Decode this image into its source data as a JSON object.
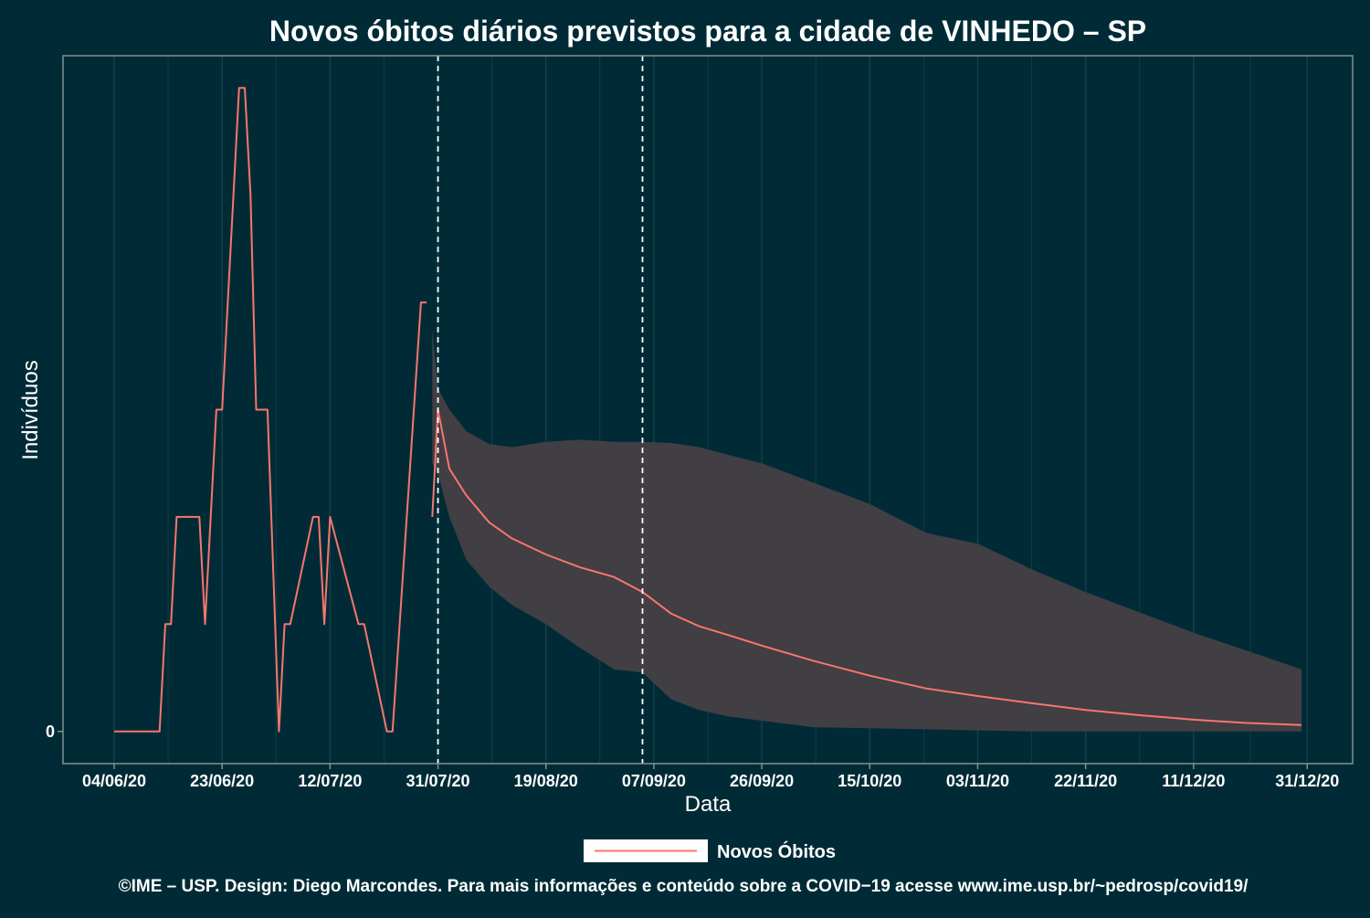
{
  "title": "Novos óbitos diários previstos para a cidade de VINHEDO – SP",
  "caption": "©IME – USP. Design: Diego Marcondes. Para mais informações e conteúdo sobre a COVID−19 acesse www.ime.usp.br/~pedrosp/covid19/",
  "colors": {
    "background": "#002b36",
    "line": "#f8766d",
    "band": "#413e44",
    "axis": "#7f9393",
    "grid": "#16414a",
    "vline": "#ffffff"
  },
  "chart_data": {
    "type": "line",
    "xlabel": "Data",
    "ylabel": "Indivíduos",
    "y_tick_labels": [
      "0"
    ],
    "x_tick_labels": [
      "04/06/20",
      "23/06/20",
      "12/07/20",
      "31/07/20",
      "19/08/20",
      "07/09/20",
      "26/09/20",
      "15/10/20",
      "03/11/20",
      "22/11/20",
      "11/12/20",
      "31/12/20"
    ],
    "x_range": [
      "2020-05-26",
      "2021-01-08"
    ],
    "y_range": [
      -0.3,
      6.3
    ],
    "legend": {
      "position": "bottom",
      "entries": [
        "Novos Óbitos"
      ]
    },
    "vertical_lines": [
      "2020-07-31",
      "2020-09-05"
    ],
    "grid": true,
    "observed": {
      "name": "Novos Óbitos",
      "x": [
        "2020-06-04",
        "2020-06-12",
        "2020-06-13",
        "2020-06-14",
        "2020-06-15",
        "2020-06-19",
        "2020-06-20",
        "2020-06-22",
        "2020-06-23",
        "2020-06-26",
        "2020-06-27",
        "2020-06-28",
        "2020-06-29",
        "2020-07-01",
        "2020-07-03",
        "2020-07-04",
        "2020-07-05",
        "2020-07-09",
        "2020-07-10",
        "2020-07-11",
        "2020-07-12",
        "2020-07-17",
        "2020-07-18",
        "2020-07-22",
        "2020-07-23",
        "2020-07-28",
        "2020-07-29"
      ],
      "y": [
        0,
        0,
        1,
        1,
        2,
        2,
        1,
        3,
        3,
        6,
        6,
        5,
        3,
        3,
        0,
        1,
        1,
        2,
        2,
        1,
        2,
        1,
        1,
        0,
        0,
        4,
        4
      ]
    },
    "forecast": {
      "name": "Novos Óbitos",
      "x": [
        "2020-07-30",
        "2020-07-31",
        "2020-08-02",
        "2020-08-05",
        "2020-08-09",
        "2020-08-13",
        "2020-08-19",
        "2020-08-25",
        "2020-08-31",
        "2020-09-05",
        "2020-09-10",
        "2020-09-15",
        "2020-09-20",
        "2020-09-26",
        "2020-10-05",
        "2020-10-15",
        "2020-10-25",
        "2020-11-03",
        "2020-11-13",
        "2020-11-22",
        "2020-12-02",
        "2020-12-11",
        "2020-12-20",
        "2020-12-30"
      ],
      "y": [
        2,
        3,
        2.45,
        2.2,
        1.95,
        1.8,
        1.65,
        1.53,
        1.44,
        1.3,
        1.1,
        0.98,
        0.9,
        0.8,
        0.66,
        0.52,
        0.4,
        0.33,
        0.26,
        0.2,
        0.15,
        0.11,
        0.08,
        0.06
      ],
      "lower": [
        2.5,
        2.4,
        2,
        1.6,
        1.35,
        1.18,
        1,
        0.78,
        0.58,
        0.55,
        0.3,
        0.2,
        0.14,
        0.1,
        0.04,
        0.03,
        0.02,
        0.01,
        0,
        0,
        0,
        0,
        0,
        0
      ],
      "upper": [
        3.75,
        3.2,
        3.0,
        2.8,
        2.68,
        2.65,
        2.7,
        2.72,
        2.7,
        2.7,
        2.69,
        2.65,
        2.58,
        2.5,
        2.32,
        2.12,
        1.85,
        1.75,
        1.5,
        1.3,
        1.1,
        0.92,
        0.76,
        0.58
      ]
    }
  }
}
